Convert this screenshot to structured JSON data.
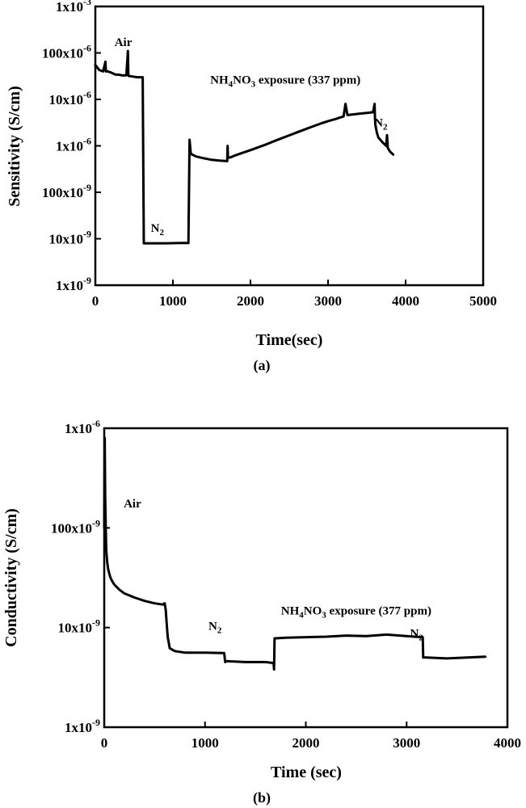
{
  "chart_data": [
    {
      "id": "a",
      "type": "line",
      "panel_label": "(a)",
      "xlabel": "Time(sec)",
      "ylabel": "Sensitivity (S/cm)",
      "xlim": [
        0,
        5000
      ],
      "ylim": [
        1e-09,
        0.001
      ],
      "yscale": "log",
      "grid": false,
      "x_ticks": [
        0,
        1000,
        2000,
        3000,
        4000,
        5000
      ],
      "x_tick_labels": [
        "0",
        "1000",
        "2000",
        "3000",
        "4000",
        "5000"
      ],
      "y_ticks": [
        1e-09,
        1e-08,
        1e-07,
        1e-06,
        1e-05,
        0.0001,
        0.001
      ],
      "y_tick_labels": [
        "1x10-9",
        "10x10-9",
        "100x10-9",
        "1x10-6",
        "10x10-6",
        "100x10-6",
        "1x10-3"
      ],
      "annotations": [
        {
          "base": "Air",
          "sub": "",
          "rest": "",
          "x": 360,
          "y": 0.00014
        },
        {
          "base": "N",
          "sub": "2",
          "rest": "",
          "x": 800,
          "y": 1.4e-08
        },
        {
          "base": "NH",
          "sub": "4",
          "rest": "NO",
          "sub2": "3",
          "tail": " exposure (337 ppm)",
          "x": 2450,
          "y": 2.2e-05
        },
        {
          "base": "N",
          "sub": "2",
          "rest": "",
          "x": 3680,
          "y": 2.6e-06
        }
      ],
      "series": [
        {
          "x": [
            0,
            50,
            100,
            130,
            135,
            140,
            200,
            260,
            300,
            340,
            400,
            420,
            425,
            430,
            480,
            540,
            610,
            625,
            640,
            700,
            900,
            1100,
            1200,
            1215,
            1230,
            1240,
            1300,
            1400,
            1500,
            1600,
            1700,
            1705,
            1710,
            1750,
            1800,
            1900,
            2000,
            2100,
            2200,
            2300,
            2400,
            2500,
            2600,
            2700,
            2800,
            2900,
            3000,
            3100,
            3200,
            3225,
            3250,
            3300,
            3400,
            3500,
            3580,
            3600,
            3605,
            3610,
            3630,
            3650,
            3700,
            3750,
            3760,
            3770,
            3800,
            3840
          ],
          "y": [
            5.5e-05,
            4.3e-05,
            4e-05,
            6.5e-05,
            4e-05,
            4.1e-05,
            3.8e-05,
            3.4e-05,
            3.4e-05,
            3.3e-05,
            3.3e-05,
            0.00011,
            3.5e-05,
            3.2e-05,
            3.1e-05,
            3e-05,
            3e-05,
            8e-09,
            8e-09,
            8e-09,
            8e-09,
            8.1e-09,
            8.1e-09,
            1.35e-06,
            7e-07,
            6.6e-07,
            5.9e-07,
            5.4e-07,
            5e-07,
            4.8e-07,
            4.7e-07,
            1e-06,
            5.5e-07,
            5.7e-07,
            6.2e-07,
            7.1e-07,
            8.1e-07,
            9.3e-07,
            1.07e-06,
            1.25e-06,
            1.45e-06,
            1.68e-06,
            1.95e-06,
            2.25e-06,
            2.6e-06,
            3e-06,
            3.4e-06,
            3.8e-06,
            4.3e-06,
            8e-06,
            4.6e-06,
            4.7e-06,
            4.9e-06,
            5.1e-06,
            5.3e-06,
            8e-06,
            4e-06,
            2.8e-06,
            1.9e-06,
            1.5e-06,
            1.2e-06,
            1e-06,
            1.7e-06,
            9e-07,
            7.5e-07,
            6.5e-07
          ]
        }
      ]
    },
    {
      "id": "b",
      "type": "line",
      "panel_label": "(b)",
      "xlabel": "Time (sec)",
      "ylabel": "Conductivity (S/cm)",
      "xlim": [
        0,
        4000
      ],
      "ylim": [
        1e-09,
        1e-06
      ],
      "yscale": "log",
      "grid": false,
      "x_ticks": [
        0,
        1000,
        2000,
        3000,
        4000
      ],
      "x_tick_labels": [
        "0",
        "1000",
        "2000",
        "3000",
        "4000"
      ],
      "y_ticks": [
        1e-09,
        1e-08,
        1e-07,
        1e-06
      ],
      "y_tick_labels": [
        "1x10-9",
        "10x10-9",
        "100x10-9",
        "1x10-6"
      ],
      "annotations": [
        {
          "base": "Air",
          "sub": "",
          "rest": "",
          "x": 280,
          "y": 1.6e-07
        },
        {
          "base": "N",
          "sub": "2",
          "rest": "",
          "x": 1100,
          "y": 9.5e-09
        },
        {
          "base": "NH",
          "sub": "4",
          "rest": "NO",
          "sub2": "3",
          "tail": " exposure (377 ppm)",
          "x": 2500,
          "y": 1.35e-08
        },
        {
          "base": "N",
          "sub": "2",
          "rest": "",
          "x": 3100,
          "y": 8e-09
        }
      ],
      "series": [
        {
          "x": [
            0,
            5,
            10,
            15,
            20,
            30,
            40,
            60,
            80,
            100,
            150,
            200,
            300,
            400,
            500,
            580,
            600,
            610,
            620,
            630,
            650,
            700,
            800,
            1000,
            1190,
            1200,
            1210,
            1400,
            1600,
            1680,
            1685,
            1690,
            1700,
            1800,
            2000,
            2200,
            2400,
            2600,
            2800,
            3000,
            3160,
            3165,
            3170,
            3200,
            3400,
            3600,
            3780
          ],
          "y": [
            1e-07,
            8e-07,
            2e-07,
            1e-07,
            6e-08,
            4.5e-08,
            3.8e-08,
            3.2e-08,
            2.9e-08,
            2.7e-08,
            2.4e-08,
            2.2e-08,
            2e-08,
            1.85e-08,
            1.75e-08,
            1.7e-08,
            1.75e-08,
            1.5e-08,
            1.1e-08,
            8e-09,
            6.2e-09,
            5.8e-09,
            5.6e-09,
            5.6e-09,
            5.55e-09,
            4.5e-09,
            4.6e-09,
            4.5e-09,
            4.5e-09,
            4.4e-09,
            3.8e-09,
            7.8e-09,
            7.8e-09,
            7.9e-09,
            8e-09,
            8.1e-09,
            8.3e-09,
            8.2e-09,
            8.5e-09,
            8.2e-09,
            8e-09,
            5e-09,
            5e-09,
            5e-09,
            4.9e-09,
            5e-09,
            5.1e-09
          ]
        }
      ]
    }
  ]
}
